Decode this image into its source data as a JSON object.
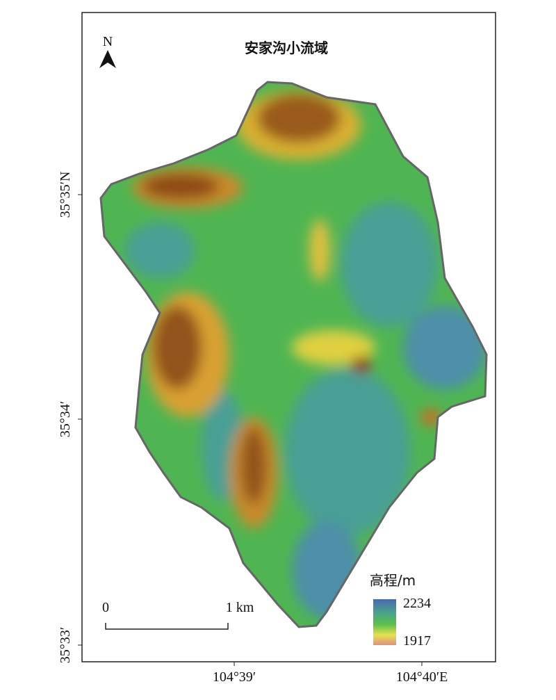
{
  "title": "安家沟小流域",
  "north_arrow": "N",
  "latitude_labels": [
    "35°35′N",
    "35°34′",
    "35°33′"
  ],
  "longitude_labels": [
    "104°39′",
    "104°40′E"
  ],
  "scale_bar": {
    "start": "0",
    "end": "1 km"
  },
  "legend": {
    "title": "高程/m",
    "max": "2234",
    "min": "1917"
  }
}
